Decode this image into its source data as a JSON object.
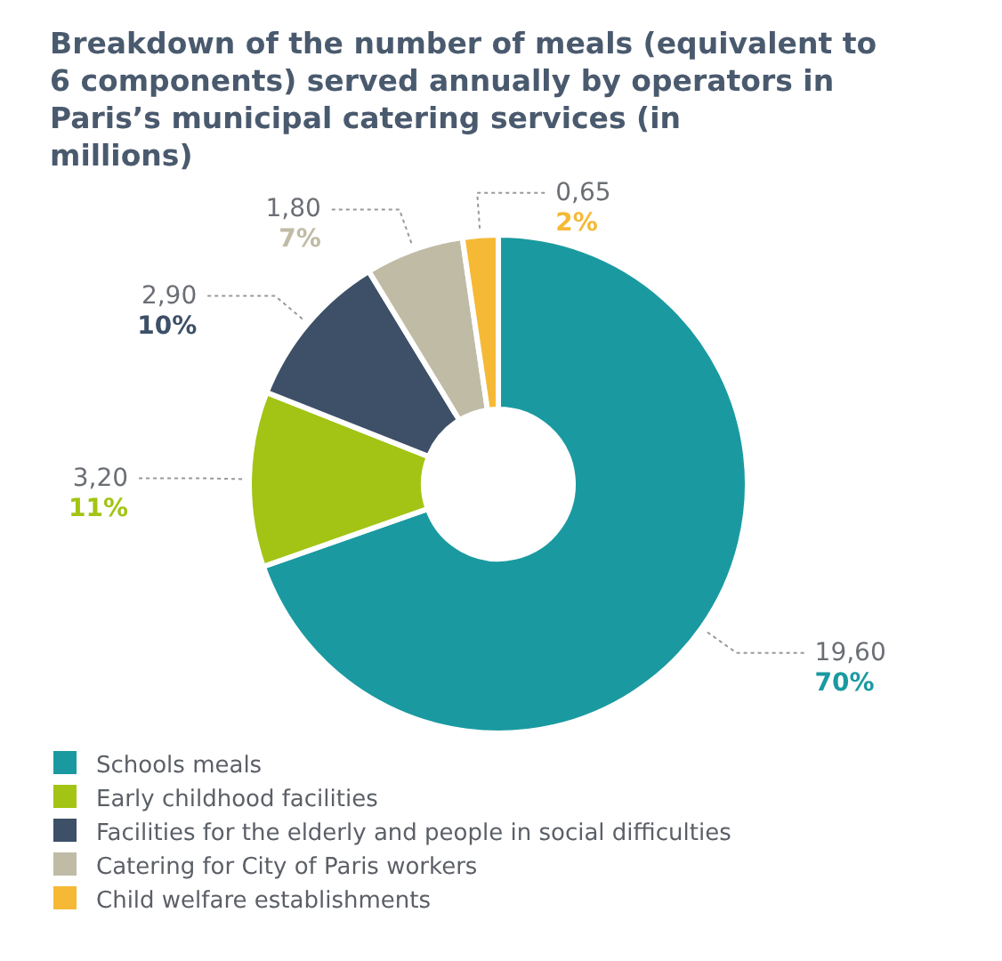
{
  "chart_data": {
    "type": "donut",
    "title": "Breakdown of the number of meals (equivalent to 6 components) served annually by operators in Paris’s municipal catering services (in millions)",
    "categories": [
      "Schools meals",
      "Early childhood facilities",
      "Facilities for the elderly and people in social difficulties",
      "Catering for City of Paris workers",
      "Child welfare establishments"
    ],
    "values": [
      19.6,
      3.2,
      2.9,
      1.8,
      0.65
    ],
    "colors": [
      "#1a9aa0",
      "#a3c414",
      "#3d5068",
      "#bfbba5",
      "#f5b935"
    ],
    "value_labels": [
      "19,60",
      "3,20",
      "2,90",
      "1,80",
      "0,65"
    ],
    "annotations": [
      "70%",
      "11%",
      "10%",
      "7%",
      "2%"
    ],
    "legend": "bottom left"
  }
}
